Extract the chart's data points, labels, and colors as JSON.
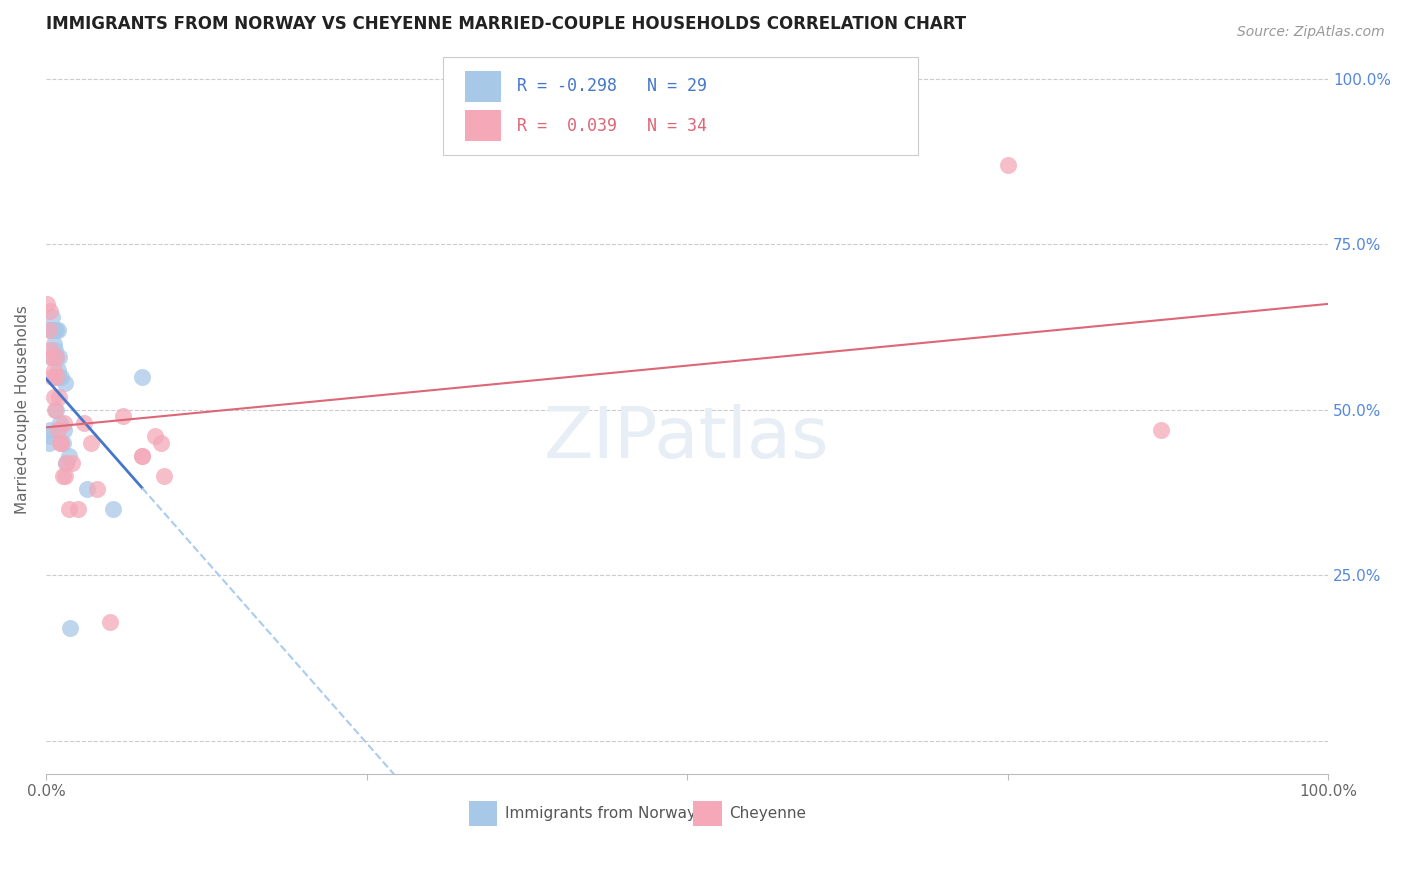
{
  "title": "IMMIGRANTS FROM NORWAY VS CHEYENNE MARRIED-COUPLE HOUSEHOLDS CORRELATION CHART",
  "source": "Source: ZipAtlas.com",
  "ylabel": "Married-couple Households",
  "color_blue": "#A8C8E8",
  "color_pink": "#F4A8B8",
  "color_blue_line": "#4477CC",
  "color_pink_line": "#DD6677",
  "color_dashed": "#AACCEE",
  "background": "#FFFFFF",
  "grid_color": "#CCCCCC",
  "norway_x": [
    0.2,
    0.3,
    0.3,
    0.4,
    0.5,
    0.5,
    0.6,
    0.6,
    0.7,
    0.7,
    0.7,
    0.8,
    0.8,
    0.8,
    0.9,
    0.9,
    1.0,
    1.0,
    1.1,
    1.2,
    1.3,
    1.4,
    1.5,
    1.6,
    1.8,
    1.9,
    3.2,
    5.2,
    7.5
  ],
  "norway_y": [
    45,
    47,
    46,
    62,
    64,
    58,
    62,
    60,
    62,
    59,
    55,
    62,
    58,
    50,
    62,
    56,
    58,
    55,
    48,
    55,
    45,
    47,
    54,
    42,
    43,
    17,
    38,
    35,
    55
  ],
  "cheyenne_x": [
    0.1,
    0.2,
    0.3,
    0.3,
    0.4,
    0.5,
    0.6,
    0.6,
    0.7,
    0.8,
    0.8,
    0.9,
    1.0,
    1.1,
    1.2,
    1.3,
    1.4,
    1.5,
    1.6,
    1.8,
    2.0,
    2.5,
    3.0,
    3.5,
    4.0,
    5.0,
    6.0,
    7.5,
    8.5,
    7.5,
    9.0,
    9.2,
    75.0,
    87.0
  ],
  "cheyenne_y": [
    66,
    62,
    65,
    59,
    58,
    55,
    56,
    52,
    50,
    55,
    58,
    47,
    52,
    45,
    45,
    40,
    48,
    40,
    42,
    35,
    42,
    35,
    48,
    45,
    38,
    18,
    49,
    43,
    46,
    43,
    45,
    40,
    87,
    47
  ],
  "xlim": [
    0,
    100
  ],
  "ylim": [
    -5,
    105
  ],
  "yticks": [
    0,
    25,
    50,
    75,
    100
  ],
  "xticks": [
    0,
    25,
    50,
    75,
    100
  ],
  "x_tick_labels": [
    "0.0%",
    "",
    "",
    "",
    "100.0%"
  ],
  "y_right_labels": [
    "",
    "25.0%",
    "50.0%",
    "75.0%",
    "100.0%"
  ]
}
